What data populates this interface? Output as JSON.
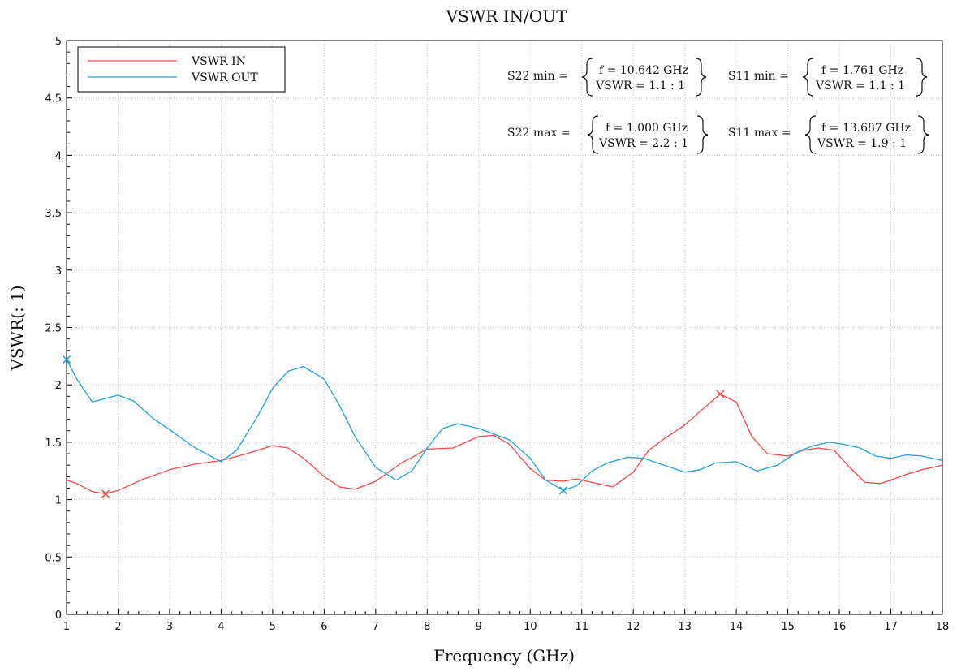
{
  "chart_data": {
    "type": "line",
    "title": "VSWR IN/OUT",
    "xlabel": "Frequency (GHz)",
    "ylabel": "VSWR(: 1)",
    "xlim": [
      1,
      18
    ],
    "ylim": [
      0,
      5
    ],
    "xticks": [
      "1",
      "2",
      "3",
      "4",
      "5",
      "6",
      "7",
      "8",
      "9",
      "10",
      "11",
      "12",
      "13",
      "14",
      "15",
      "16",
      "17",
      "18"
    ],
    "yticks": [
      "0",
      "0.5",
      "1",
      "1.5",
      "2",
      "2.5",
      "3",
      "3.5",
      "4",
      "4.5",
      "5"
    ],
    "grid": true,
    "legend_position": "top-left",
    "series": [
      {
        "name": "VSWR IN",
        "color": "#f24a4a",
        "x": [
          1.0,
          1.2,
          1.5,
          1.761,
          2.0,
          2.5,
          3.0,
          3.5,
          4.0,
          4.5,
          5.0,
          5.3,
          5.6,
          6.0,
          6.3,
          6.6,
          7.0,
          7.5,
          8.0,
          8.5,
          9.0,
          9.3,
          9.6,
          10.0,
          10.3,
          10.642,
          10.9,
          11.2,
          11.6,
          12.0,
          12.3,
          12.6,
          13.0,
          13.3,
          13.687,
          14.0,
          14.3,
          14.6,
          15.0,
          15.3,
          15.6,
          15.9,
          16.2,
          16.5,
          16.8,
          17.0,
          17.3,
          17.6,
          18.0
        ],
        "y": [
          1.17,
          1.14,
          1.07,
          1.05,
          1.08,
          1.18,
          1.26,
          1.31,
          1.34,
          1.4,
          1.47,
          1.45,
          1.36,
          1.2,
          1.11,
          1.09,
          1.16,
          1.32,
          1.44,
          1.45,
          1.55,
          1.56,
          1.48,
          1.27,
          1.17,
          1.16,
          1.18,
          1.15,
          1.11,
          1.24,
          1.43,
          1.53,
          1.65,
          1.77,
          1.92,
          1.85,
          1.55,
          1.4,
          1.38,
          1.43,
          1.45,
          1.43,
          1.28,
          1.15,
          1.14,
          1.17,
          1.22,
          1.26,
          1.3
        ]
      },
      {
        "name": "VSWR OUT",
        "color": "#1fa3d8",
        "x": [
          1.0,
          1.2,
          1.5,
          2.0,
          2.3,
          2.7,
          3.0,
          3.5,
          4.0,
          4.3,
          4.7,
          5.0,
          5.3,
          5.6,
          6.0,
          6.3,
          6.6,
          7.0,
          7.4,
          7.7,
          8.0,
          8.3,
          8.6,
          9.0,
          9.3,
          9.6,
          10.0,
          10.3,
          10.642,
          10.9,
          11.2,
          11.5,
          11.9,
          12.2,
          12.6,
          13.0,
          13.3,
          13.6,
          14.0,
          14.4,
          14.8,
          15.2,
          15.5,
          15.8,
          16.1,
          16.4,
          16.7,
          17.0,
          17.3,
          17.6,
          18.0
        ],
        "y": [
          2.22,
          2.05,
          1.85,
          1.91,
          1.86,
          1.7,
          1.61,
          1.45,
          1.33,
          1.43,
          1.72,
          1.97,
          2.12,
          2.16,
          2.05,
          1.82,
          1.55,
          1.28,
          1.17,
          1.25,
          1.45,
          1.62,
          1.66,
          1.62,
          1.57,
          1.52,
          1.36,
          1.17,
          1.08,
          1.12,
          1.25,
          1.32,
          1.37,
          1.36,
          1.3,
          1.24,
          1.26,
          1.32,
          1.33,
          1.25,
          1.3,
          1.42,
          1.47,
          1.5,
          1.48,
          1.45,
          1.38,
          1.36,
          1.39,
          1.38,
          1.34
        ]
      }
    ],
    "markers": [
      {
        "series": "VSWR OUT",
        "x": 1.0,
        "y": 2.22,
        "color": "#1fa3d8"
      },
      {
        "series": "VSWR IN",
        "x": 1.761,
        "y": 1.05,
        "color": "#f24a4a"
      },
      {
        "series": "VSWR OUT",
        "x": 10.642,
        "y": 1.08,
        "color": "#1fa3d8"
      },
      {
        "series": "VSWR IN",
        "x": 13.687,
        "y": 1.92,
        "color": "#f24a4a"
      }
    ],
    "annotations": {
      "s22_min_label": "S22 min =",
      "s22_min_f": "f = 10.642 GHz",
      "s22_min_vswr": "VSWR = 1.1 : 1",
      "s11_min_label": "S11 min =",
      "s11_min_f": "f = 1.761 GHz",
      "s11_min_vswr": "VSWR = 1.1 : 1",
      "s22_max_label": "S22 max =",
      "s22_max_f": "f = 1.000 GHz",
      "s22_max_vswr": "VSWR = 2.2 : 1",
      "s11_max_label": "S11 max =",
      "s11_max_f": "f = 13.687 GHz",
      "s11_max_vswr": "VSWR = 1.9 : 1"
    }
  }
}
